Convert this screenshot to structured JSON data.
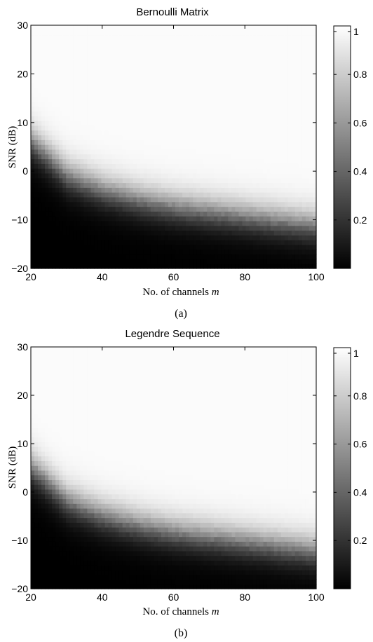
{
  "chart_data": [
    {
      "type": "heatmap",
      "title": "Bernoulli Matrix",
      "xlabel": "No. of channels",
      "xlabel_var": "m",
      "ylabel": "SNR (dB)",
      "xlim": [
        20,
        100
      ],
      "ylim": [
        -20,
        30
      ],
      "xticks": [
        "20",
        "40",
        "60",
        "80",
        "100"
      ],
      "yticks": [
        "−20",
        "−10",
        "0",
        "10",
        "20",
        "30"
      ],
      "colorbar": {
        "min": 0,
        "max": 1,
        "ticks": [
          "0.2",
          "0.4",
          "0.6",
          "0.8",
          "1"
        ]
      },
      "colormap": "gray",
      "transition_snr_db": [
        {
          "m": 20,
          "snr": 6
        },
        {
          "m": 30,
          "snr": -1
        },
        {
          "m": 40,
          "snr": -4
        },
        {
          "m": 50,
          "snr": -6
        },
        {
          "m": 60,
          "snr": -7.5
        },
        {
          "m": 70,
          "snr": -8.5
        },
        {
          "m": 80,
          "snr": -9.5
        },
        {
          "m": 90,
          "snr": -10.5
        },
        {
          "m": 100,
          "snr": -11.5
        }
      ],
      "transition_width_db": 4.5,
      "caption": "(a)"
    },
    {
      "type": "heatmap",
      "title": "Legendre Sequence",
      "xlabel": "No. of channels",
      "xlabel_var": "m",
      "ylabel": "SNR (dB)",
      "xlim": [
        20,
        100
      ],
      "ylim": [
        -20,
        30
      ],
      "xticks": [
        "20",
        "40",
        "60",
        "80",
        "100"
      ],
      "yticks": [
        "−20",
        "−10",
        "0",
        "10",
        "20",
        "30"
      ],
      "colorbar": {
        "min": 0,
        "max": 1,
        "ticks": [
          "0.2",
          "0.4",
          "0.6",
          "0.8",
          "1"
        ]
      },
      "colormap": "gray",
      "transition_snr_db": [
        {
          "m": 20,
          "snr": 5
        },
        {
          "m": 30,
          "snr": -2
        },
        {
          "m": 40,
          "snr": -5
        },
        {
          "m": 50,
          "snr": -7
        },
        {
          "m": 60,
          "snr": -8.5
        },
        {
          "m": 70,
          "snr": -9.5
        },
        {
          "m": 80,
          "snr": -10.5
        },
        {
          "m": 90,
          "snr": -11.5
        },
        {
          "m": 100,
          "snr": -12.5
        }
      ],
      "transition_width_db": 4.5,
      "caption": "(b)"
    }
  ]
}
